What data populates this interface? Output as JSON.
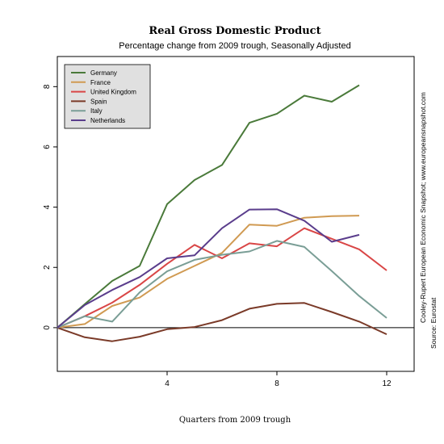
{
  "chart_data": {
    "type": "line",
    "title": "Real Gross Domestic Product",
    "subtitle": "Percentage change from 2009 trough, Seasonally Adjusted",
    "xlabel": "Quarters from 2009 trough",
    "ylabel": "",
    "xlim": [
      0,
      13
    ],
    "ylim": [
      -1.45,
      9.0
    ],
    "x_ticks": [
      4,
      8,
      12
    ],
    "y_ticks": [
      0,
      2,
      4,
      6,
      8
    ],
    "zero_line": true,
    "grid": false,
    "legend_position": "top-left",
    "x": [
      0,
      1,
      2,
      3,
      4,
      5,
      6,
      7,
      8,
      9,
      10,
      11,
      12,
      13
    ],
    "series": [
      {
        "name": "Germany",
        "color": "#4a7a3a",
        "values": [
          0,
          0.78,
          1.55,
          2.05,
          4.1,
          4.9,
          5.4,
          6.8,
          7.1,
          7.7,
          7.5,
          8.05,
          null,
          null
        ]
      },
      {
        "name": "France",
        "color": "#d09a52",
        "values": [
          0,
          0.12,
          0.72,
          1.0,
          1.62,
          2.05,
          2.48,
          3.42,
          3.38,
          3.65,
          3.7,
          3.72,
          null,
          null
        ]
      },
      {
        "name": "United Kingdom",
        "color": "#d94646",
        "values": [
          0,
          0.38,
          0.83,
          1.42,
          2.12,
          2.75,
          2.3,
          2.8,
          2.7,
          3.3,
          2.95,
          2.6,
          1.9,
          null
        ]
      },
      {
        "name": "Spain",
        "color": "#7a3a28",
        "values": [
          0,
          -0.32,
          -0.45,
          -0.3,
          -0.05,
          0.02,
          0.25,
          0.63,
          0.79,
          0.82,
          0.52,
          0.2,
          -0.22,
          null
        ]
      },
      {
        "name": "Italy",
        "color": "#7a9e96",
        "values": [
          0,
          0.38,
          0.2,
          1.17,
          1.87,
          2.25,
          2.42,
          2.53,
          2.88,
          2.68,
          1.88,
          1.05,
          0.32,
          null
        ]
      },
      {
        "name": "Netherlands",
        "color": "#5a3d8c",
        "values": [
          0,
          0.75,
          1.25,
          1.68,
          2.3,
          2.4,
          3.3,
          3.92,
          3.93,
          3.55,
          2.85,
          3.08,
          null,
          null
        ]
      }
    ]
  },
  "side_notes": {
    "credit": "Cooley-Rupert European Economic Snapshot; www.europeansnapshot.com",
    "source": "Source: Eurostat"
  }
}
